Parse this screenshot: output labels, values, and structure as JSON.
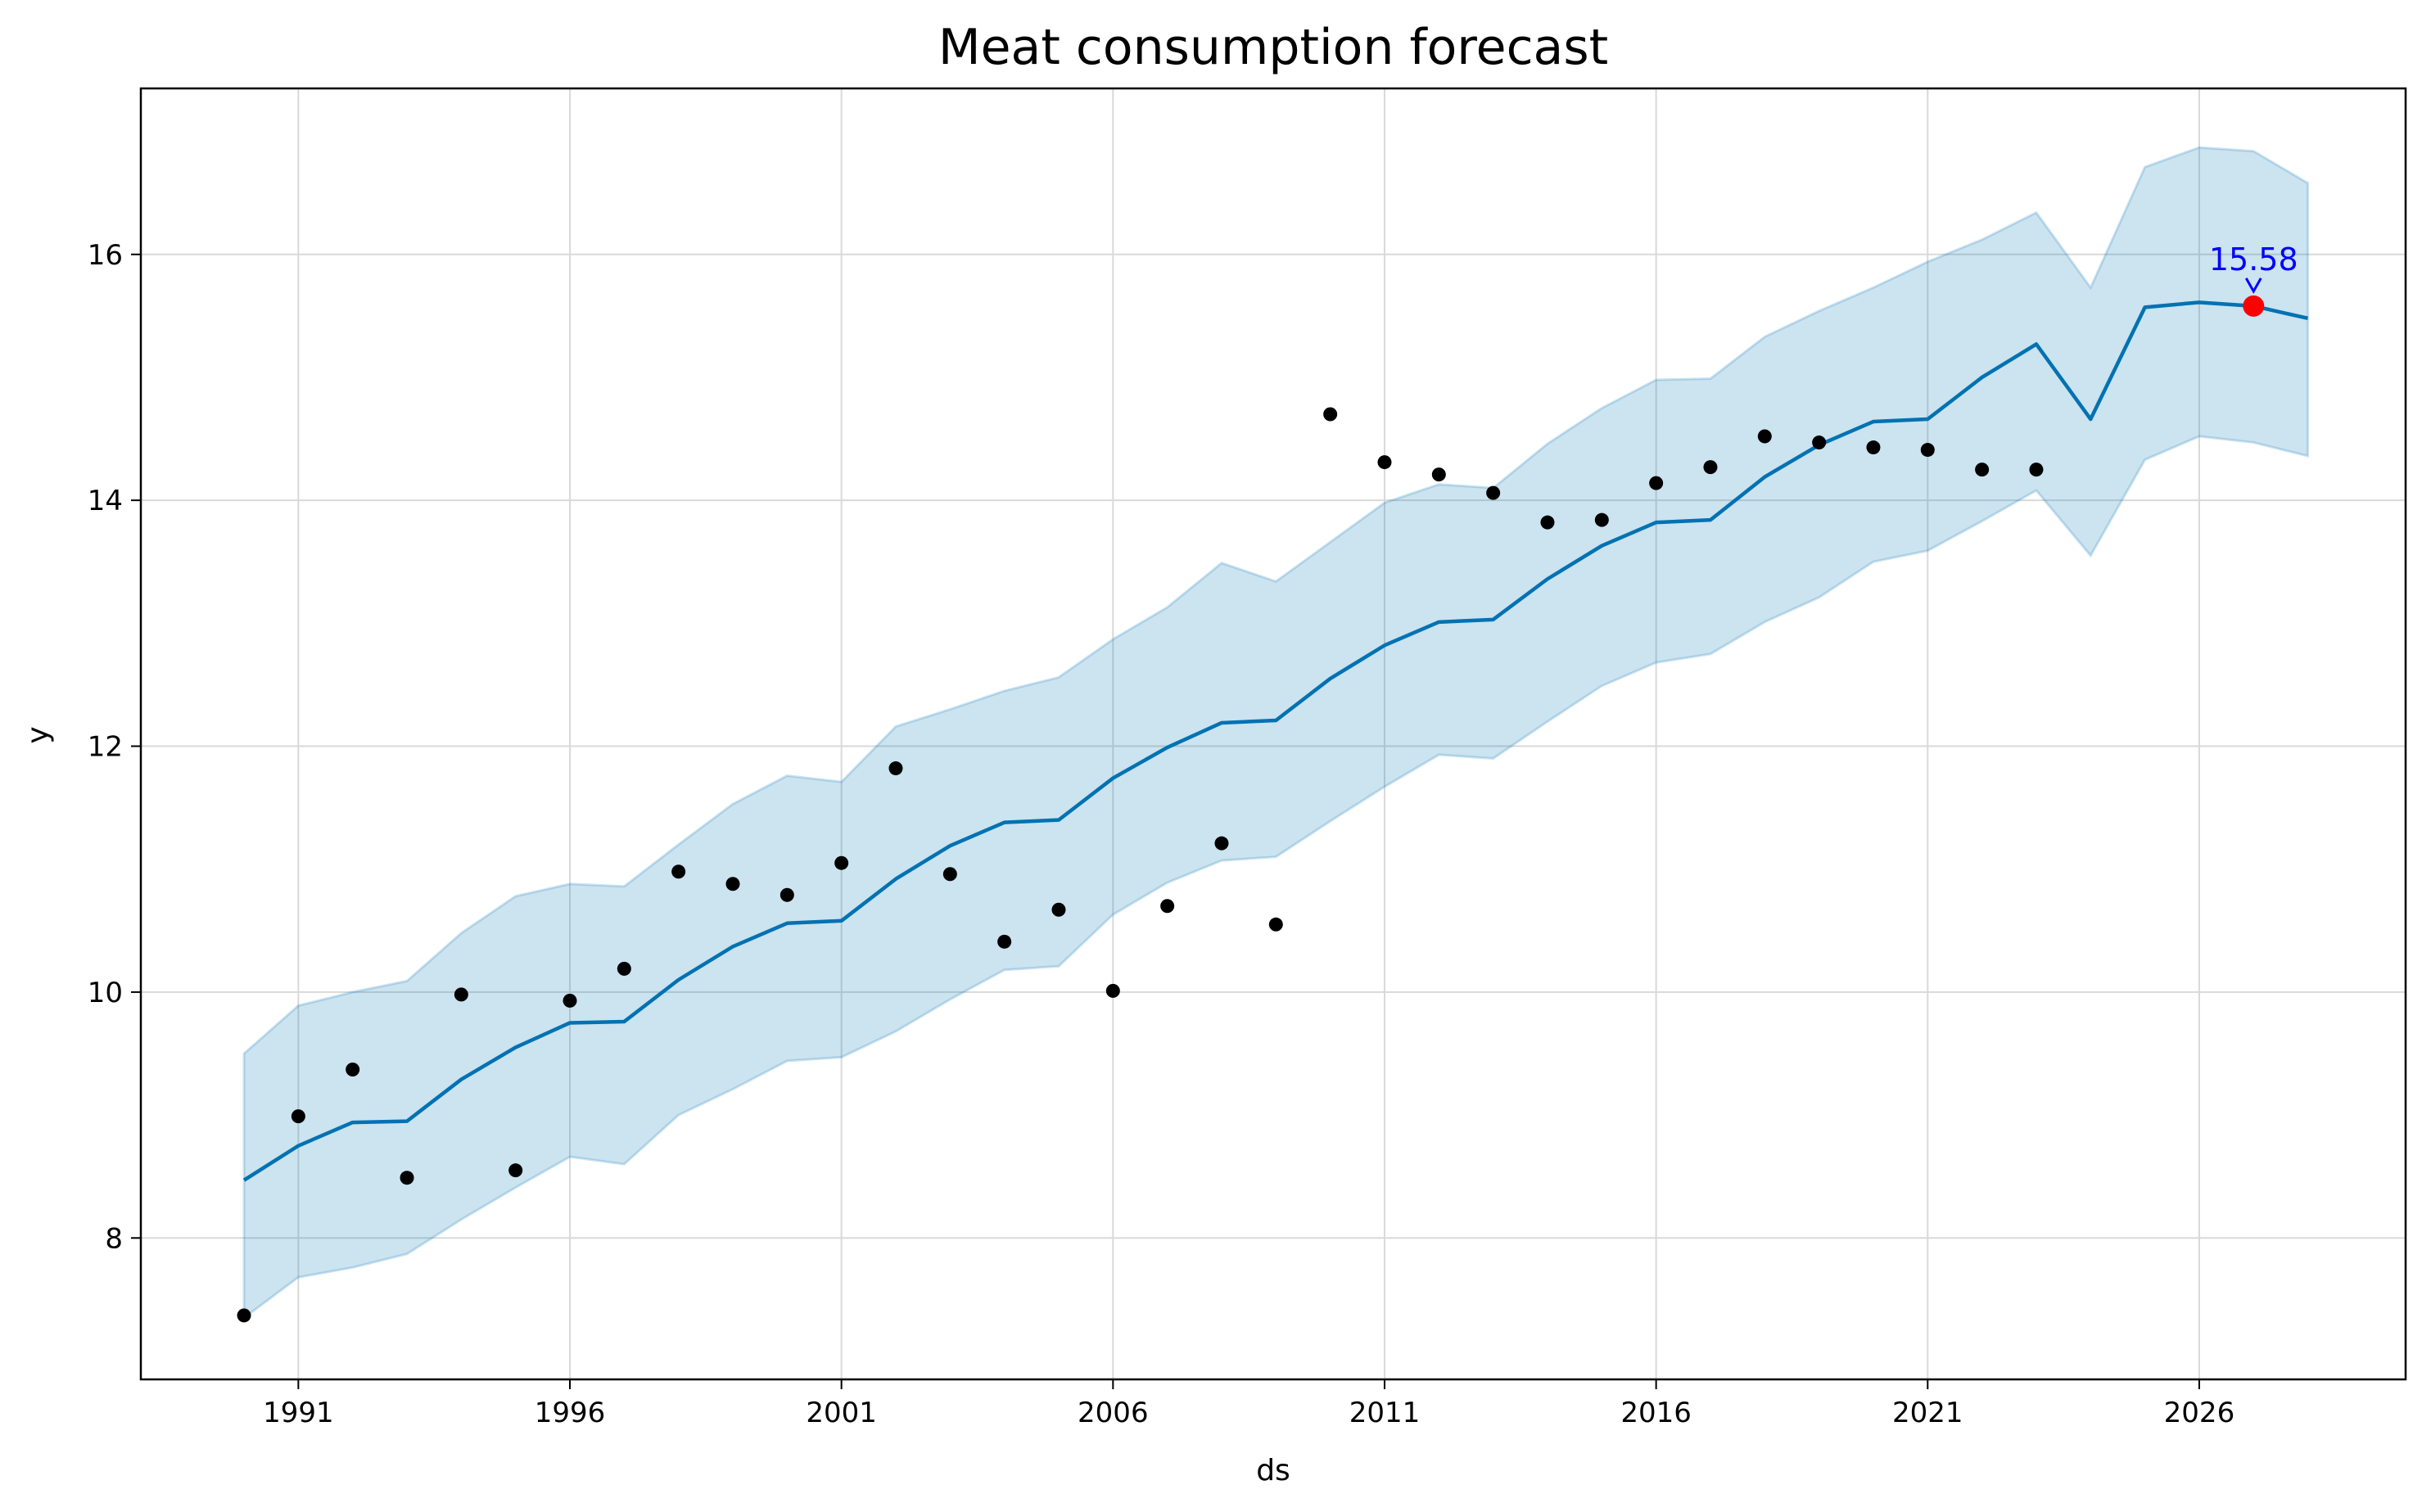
{
  "chart_data": {
    "type": "line",
    "title": "Meat consumption forecast",
    "xlabel": "ds",
    "ylabel": "y",
    "xlim": [
      1988.1,
      2029.8
    ],
    "ylim": [
      6.85,
      17.35
    ],
    "xticks": [
      1991,
      1996,
      2001,
      2006,
      2011,
      2016,
      2021,
      2026
    ],
    "yticks": [
      8,
      10,
      12,
      14,
      16
    ],
    "grid": true,
    "colors": {
      "forecast_line": "#0072b2",
      "interval_fill": "#0072b2",
      "observed_points": "#000000",
      "highlight_point": "#ff0000",
      "annotation": "#0000ff"
    },
    "series": [
      {
        "kind": "forecast",
        "x": [
          1990,
          1991,
          1992,
          1993,
          1994,
          1995,
          1996,
          1997,
          1998,
          1999,
          2000,
          2001,
          2002,
          2003,
          2004,
          2005,
          2006,
          2007,
          2008,
          2009,
          2010,
          2011,
          2012,
          2013,
          2014,
          2015,
          2016,
          2017,
          2018,
          2019,
          2020,
          2021,
          2022,
          2023,
          2024,
          2025,
          2026,
          2027,
          2028
        ],
        "values": [
          8.47,
          8.75,
          8.94,
          8.95,
          9.29,
          9.55,
          9.75,
          9.76,
          10.1,
          10.37,
          10.56,
          10.58,
          10.92,
          11.19,
          11.38,
          11.4,
          11.74,
          11.99,
          12.19,
          12.21,
          12.55,
          12.82,
          13.01,
          13.03,
          13.36,
          13.63,
          13.82,
          13.84,
          14.19,
          14.45,
          14.64,
          14.66,
          15.0,
          15.27,
          14.66,
          15.57,
          15.61,
          15.58,
          15.48
        ]
      },
      {
        "kind": "interval_upper",
        "x": [
          1990,
          1991,
          1992,
          1993,
          1994,
          1995,
          1996,
          1997,
          1998,
          1999,
          2000,
          2001,
          2002,
          2003,
          2004,
          2005,
          2006,
          2007,
          2008,
          2009,
          2010,
          2011,
          2012,
          2013,
          2014,
          2015,
          2016,
          2017,
          2018,
          2019,
          2020,
          2021,
          2022,
          2023,
          2024,
          2025,
          2026,
          2027,
          2028
        ],
        "values": [
          9.5,
          9.89,
          10.0,
          10.09,
          10.48,
          10.78,
          10.88,
          10.86,
          11.2,
          11.53,
          11.76,
          11.71,
          12.16,
          12.3,
          12.45,
          12.56,
          12.87,
          13.13,
          13.49,
          13.34,
          13.66,
          13.98,
          14.13,
          14.1,
          14.46,
          14.75,
          14.98,
          14.99,
          15.33,
          15.54,
          15.73,
          15.94,
          16.12,
          16.34,
          15.73,
          16.71,
          16.87,
          16.84,
          16.58
        ]
      },
      {
        "kind": "interval_lower",
        "x": [
          1990,
          1991,
          1992,
          1993,
          1994,
          1995,
          1996,
          1997,
          1998,
          1999,
          2000,
          2001,
          2002,
          2003,
          2004,
          2005,
          2006,
          2007,
          2008,
          2009,
          2010,
          2011,
          2012,
          2013,
          2014,
          2015,
          2016,
          2017,
          2018,
          2019,
          2020,
          2021,
          2022,
          2023,
          2024,
          2025,
          2026,
          2027,
          2028
        ],
        "values": [
          7.35,
          7.68,
          7.76,
          7.87,
          8.15,
          8.41,
          8.66,
          8.6,
          9.0,
          9.21,
          9.44,
          9.47,
          9.68,
          9.94,
          10.18,
          10.21,
          10.63,
          10.89,
          11.07,
          11.1,
          11.39,
          11.67,
          11.93,
          11.9,
          12.2,
          12.49,
          12.68,
          12.75,
          13.01,
          13.21,
          13.5,
          13.59,
          13.83,
          14.08,
          13.55,
          14.33,
          14.52,
          14.47,
          14.36
        ]
      },
      {
        "kind": "observed",
        "x": [
          1990,
          1991,
          1992,
          1993,
          1994,
          1995,
          1996,
          1997,
          1998,
          1999,
          2000,
          2001,
          2002,
          2003,
          2004,
          2005,
          2006,
          2007,
          2008,
          2009,
          2010,
          2011,
          2012,
          2013,
          2014,
          2015,
          2016,
          2017,
          2018,
          2019,
          2020,
          2021,
          2022,
          2023
        ],
        "values": [
          7.37,
          8.99,
          9.37,
          8.49,
          9.98,
          8.55,
          9.93,
          10.19,
          10.98,
          10.88,
          10.79,
          11.05,
          11.82,
          10.96,
          10.41,
          10.67,
          10.01,
          10.7,
          11.21,
          10.55,
          14.7,
          14.31,
          14.21,
          14.06,
          13.82,
          13.84,
          14.14,
          14.27,
          14.52,
          14.47,
          14.43,
          14.41,
          14.25,
          14.25
        ]
      }
    ],
    "annotations": [
      {
        "x": 2027,
        "y": 15.58,
        "text": "15.58"
      }
    ]
  }
}
